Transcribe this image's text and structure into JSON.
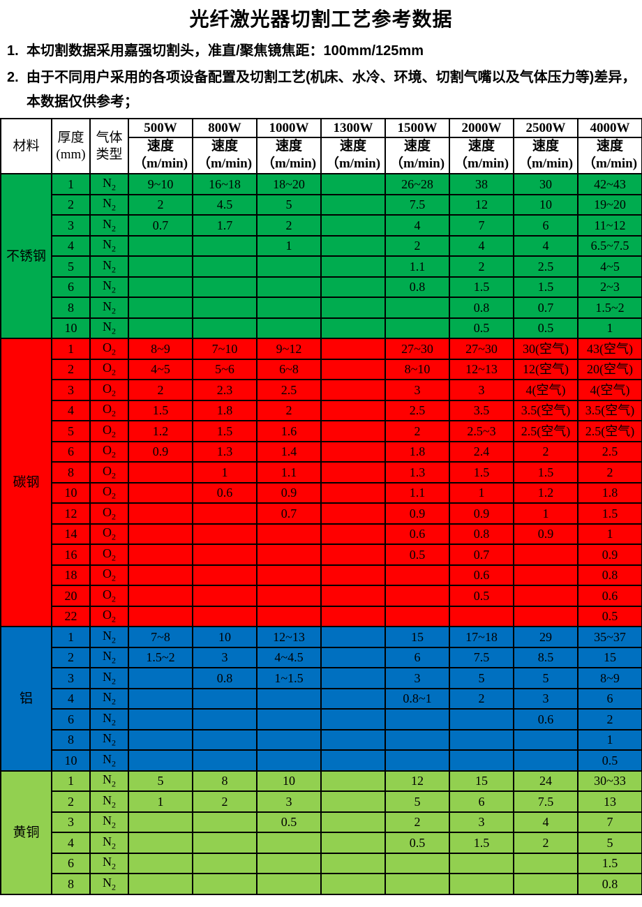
{
  "title": "光纤激光器切割工艺参考数据",
  "notes": [
    {
      "num": "1.",
      "text": "本切割数据采用嘉强切割头，准直/聚焦镜焦距：100mm/125mm"
    },
    {
      "num": "2.",
      "text": "由于不同用户采用的各项设备配置及切割工艺(机床、水冷、环境、切割气嘴以及气体压力等)差异，本数据仅供参考；"
    }
  ],
  "table": {
    "header": {
      "material": "材料",
      "thickness_l1": "厚度",
      "thickness_l2": "(mm)",
      "gas_l1": "气体",
      "gas_l2": "类型",
      "powers": [
        "500W",
        "800W",
        "1000W",
        "1300W",
        "1500W",
        "2000W",
        "2500W",
        "4000W"
      ],
      "speed_label": "速度",
      "speed_unit": "（m/min)"
    },
    "sections": [
      {
        "material": "不锈钢",
        "color": "#00AC4F",
        "rows": [
          {
            "t": "1",
            "gas": "N2",
            "v": [
              "9~10",
              "16~18",
              "18~20",
              "",
              "26~28",
              "38",
              "30",
              "42~43"
            ]
          },
          {
            "t": "2",
            "gas": "N2",
            "v": [
              "2",
              "4.5",
              "5",
              "",
              "7.5",
              "12",
              "10",
              "19~20"
            ]
          },
          {
            "t": "3",
            "gas": "N2",
            "v": [
              "0.7",
              "1.7",
              "2",
              "",
              "4",
              "7",
              "6",
              "11~12"
            ]
          },
          {
            "t": "4",
            "gas": "N2",
            "v": [
              "",
              "",
              "1",
              "",
              "2",
              "4",
              "4",
              "6.5~7.5"
            ]
          },
          {
            "t": "5",
            "gas": "N2",
            "v": [
              "",
              "",
              "",
              "",
              "1.1",
              "2",
              "2.5",
              "4~5"
            ]
          },
          {
            "t": "6",
            "gas": "N2",
            "v": [
              "",
              "",
              "",
              "",
              "0.8",
              "1.5",
              "1.5",
              "2~3"
            ]
          },
          {
            "t": "8",
            "gas": "N2",
            "v": [
              "",
              "",
              "",
              "",
              "",
              "0.8",
              "0.7",
              "1.5~2"
            ]
          },
          {
            "t": "10",
            "gas": "N2",
            "v": [
              "",
              "",
              "",
              "",
              "",
              "0.5",
              "0.5",
              "1"
            ]
          }
        ]
      },
      {
        "material": "碳钢",
        "color": "#FF0000",
        "rows": [
          {
            "t": "1",
            "gas": "O2",
            "v": [
              "8~9",
              "7~10",
              "9~12",
              "",
              "27~30",
              "27~30",
              "30(空气)",
              "43(空气)"
            ]
          },
          {
            "t": "2",
            "gas": "O2",
            "v": [
              "4~5",
              "5~6",
              "6~8",
              "",
              "8~10",
              "12~13",
              "12(空气)",
              "20(空气)"
            ]
          },
          {
            "t": "3",
            "gas": "O2",
            "v": [
              "2",
              "2.3",
              "2.5",
              "",
              "3",
              "3",
              "4(空气)",
              "4(空气)"
            ]
          },
          {
            "t": "4",
            "gas": "O2",
            "v": [
              "1.5",
              "1.8",
              "2",
              "",
              "2.5",
              "3.5",
              "3.5(空气)",
              "3.5(空气)"
            ]
          },
          {
            "t": "5",
            "gas": "O2",
            "v": [
              "1.2",
              "1.5",
              "1.6",
              "",
              "2",
              "2.5~3",
              "2.5(空气)",
              "2.5(空气)"
            ]
          },
          {
            "t": "6",
            "gas": "O2",
            "v": [
              "0.9",
              "1.3",
              "1.4",
              "",
              "1.8",
              "2.4",
              "2",
              "2.5"
            ]
          },
          {
            "t": "8",
            "gas": "O2",
            "v": [
              "",
              "1",
              "1.1",
              "",
              "1.3",
              "1.5",
              "1.5",
              "2"
            ]
          },
          {
            "t": "10",
            "gas": "O2",
            "v": [
              "",
              "0.6",
              "0.9",
              "",
              "1.1",
              "1",
              "1.2",
              "1.8"
            ]
          },
          {
            "t": "12",
            "gas": "O2",
            "v": [
              "",
              "",
              "0.7",
              "",
              "0.9",
              "0.9",
              "1",
              "1.5"
            ]
          },
          {
            "t": "14",
            "gas": "O2",
            "v": [
              "",
              "",
              "",
              "",
              "0.6",
              "0.8",
              "0.9",
              "1"
            ]
          },
          {
            "t": "16",
            "gas": "O2",
            "v": [
              "",
              "",
              "",
              "",
              "0.5",
              "0.7",
              "",
              "0.9"
            ]
          },
          {
            "t": "18",
            "gas": "O2",
            "v": [
              "",
              "",
              "",
              "",
              "",
              "0.6",
              "",
              "0.8"
            ]
          },
          {
            "t": "20",
            "gas": "O2",
            "v": [
              "",
              "",
              "",
              "",
              "",
              "0.5",
              "",
              "0.6"
            ]
          },
          {
            "t": "22",
            "gas": "O2",
            "v": [
              "",
              "",
              "",
              "",
              "",
              "",
              "",
              "0.5"
            ]
          }
        ]
      },
      {
        "material": "铝",
        "color": "#0070C0",
        "rows": [
          {
            "t": "1",
            "gas": "N2",
            "v": [
              "7~8",
              "10",
              "12~13",
              "",
              "15",
              "17~18",
              "29",
              "35~37"
            ]
          },
          {
            "t": "2",
            "gas": "N2",
            "v": [
              "1.5~2",
              "3",
              "4~4.5",
              "",
              "6",
              "7.5",
              "8.5",
              "15"
            ]
          },
          {
            "t": "3",
            "gas": "N2",
            "v": [
              "",
              "0.8",
              "1~1.5",
              "",
              "3",
              "5",
              "5",
              "8~9"
            ]
          },
          {
            "t": "4",
            "gas": "N2",
            "v": [
              "",
              "",
              "",
              "",
              "0.8~1",
              "2",
              "3",
              "6"
            ]
          },
          {
            "t": "6",
            "gas": "N2",
            "v": [
              "",
              "",
              "",
              "",
              "",
              "",
              "0.6",
              "2"
            ]
          },
          {
            "t": "8",
            "gas": "N2",
            "v": [
              "",
              "",
              "",
              "",
              "",
              "",
              "",
              "1"
            ]
          },
          {
            "t": "10",
            "gas": "N2",
            "v": [
              "",
              "",
              "",
              "",
              "",
              "",
              "",
              "0.5"
            ]
          }
        ]
      },
      {
        "material": "黄铜",
        "color": "#92D050",
        "rows": [
          {
            "t": "1",
            "gas": "N2",
            "v": [
              "5",
              "8",
              "10",
              "",
              "12",
              "15",
              "24",
              "30~33"
            ]
          },
          {
            "t": "2",
            "gas": "N2",
            "v": [
              "1",
              "2",
              "3",
              "",
              "5",
              "6",
              "7.5",
              "13"
            ]
          },
          {
            "t": "3",
            "gas": "N2",
            "v": [
              "",
              "",
              "0.5",
              "",
              "2",
              "3",
              "4",
              "7"
            ]
          },
          {
            "t": "4",
            "gas": "N2",
            "v": [
              "",
              "",
              "",
              "",
              "0.5",
              "1.5",
              "2",
              "5"
            ]
          },
          {
            "t": "6",
            "gas": "N2",
            "v": [
              "",
              "",
              "",
              "",
              "",
              "",
              "",
              "1.5"
            ]
          },
          {
            "t": "8",
            "gas": "N2",
            "v": [
              "",
              "",
              "",
              "",
              "",
              "",
              "",
              "0.8"
            ]
          }
        ]
      }
    ]
  }
}
